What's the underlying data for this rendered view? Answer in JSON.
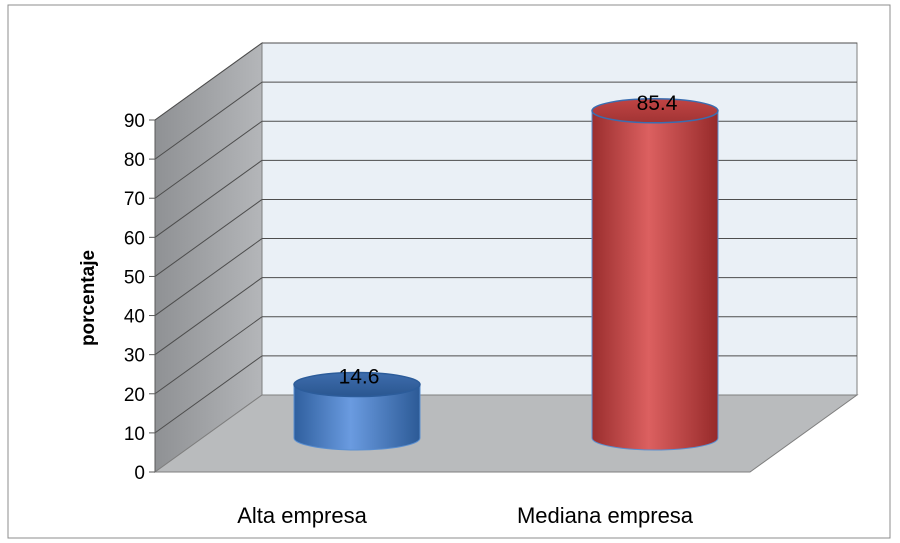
{
  "chart_data": {
    "type": "bar",
    "style": "3d-cylinder",
    "categories": [
      "Alta empresa",
      "Mediana empresa"
    ],
    "values": [
      14.6,
      85.4
    ],
    "data_labels": [
      "14.6",
      "85.4"
    ],
    "ylabel": "porcentaje",
    "ylim": [
      0,
      90
    ],
    "yticks": [
      "0",
      "10",
      "20",
      "30",
      "40",
      "50",
      "60",
      "70",
      "80",
      "90"
    ],
    "grid": true,
    "legend": "none",
    "colors": {
      "bar_1": "#4a7ecb",
      "bar_2": "#c84a4a",
      "wall": "#eaf0f6",
      "side_wall": "#a7a9ac",
      "floor": "#b9bbbd"
    }
  }
}
